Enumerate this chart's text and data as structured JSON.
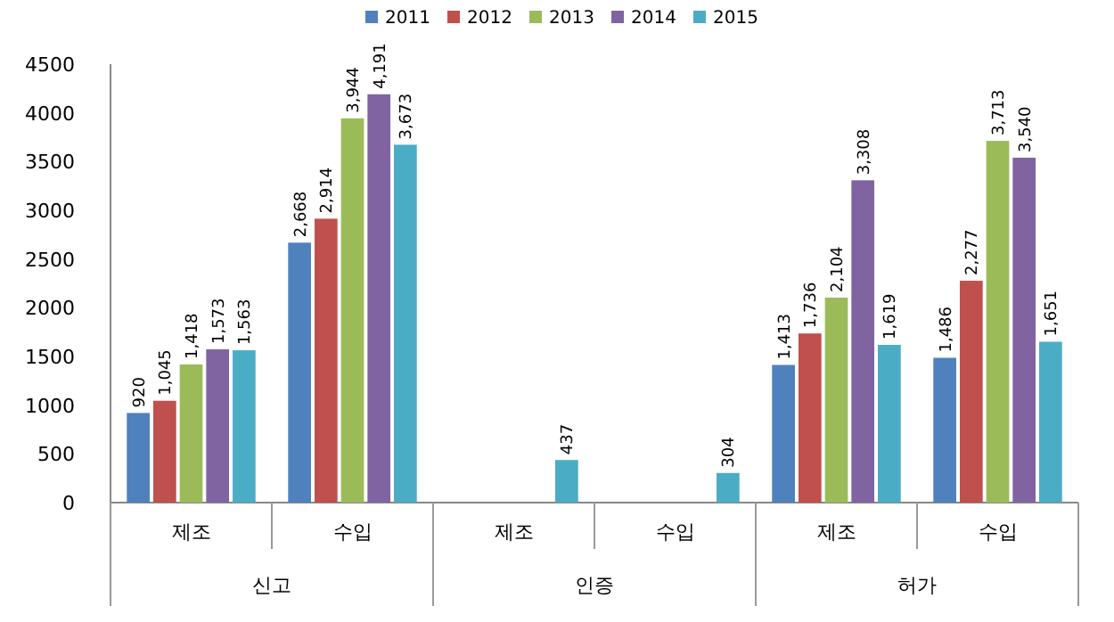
{
  "chart_data": {
    "type": "bar",
    "categories": [
      "제조",
      "수입",
      "제조",
      "수입",
      "제조",
      "수입"
    ],
    "annotations": [
      "신고",
      "인증",
      "허가"
    ],
    "series": [
      {
        "name": "2011",
        "color": "#4f81bd",
        "values": [
          920,
          2668,
          null,
          null,
          1413,
          1486
        ],
        "value_labels": [
          "920",
          "2,668",
          null,
          null,
          "1,413",
          "1,486"
        ]
      },
      {
        "name": "2012",
        "color": "#c0504d",
        "values": [
          1045,
          2914,
          null,
          null,
          1736,
          2277
        ],
        "value_labels": [
          "1,045",
          "2,914",
          null,
          null,
          "1,736",
          "2,277"
        ]
      },
      {
        "name": "2013",
        "color": "#9bbb59",
        "values": [
          1418,
          3944,
          null,
          null,
          2104,
          3713
        ],
        "value_labels": [
          "1,418",
          "3,944",
          null,
          null,
          "2,104",
          "3,713"
        ]
      },
      {
        "name": "2014",
        "color": "#8064a2",
        "values": [
          1573,
          4191,
          null,
          null,
          3308,
          3540
        ],
        "value_labels": [
          "1,573",
          "4,191",
          null,
          null,
          "3,308",
          "3,540"
        ]
      },
      {
        "name": "2015",
        "color": "#4bacc6",
        "values": [
          1563,
          3673,
          437,
          304,
          1619,
          1651
        ],
        "value_labels": [
          "1,563",
          "3,673",
          "437",
          "304",
          "1,619",
          "1,651"
        ]
      }
    ],
    "ylim": [
      0,
      4500
    ],
    "yticks": [
      0,
      500,
      1000,
      1500,
      2000,
      2500,
      3000,
      3500,
      4000,
      4500
    ],
    "legend": "top",
    "grid": false
  }
}
